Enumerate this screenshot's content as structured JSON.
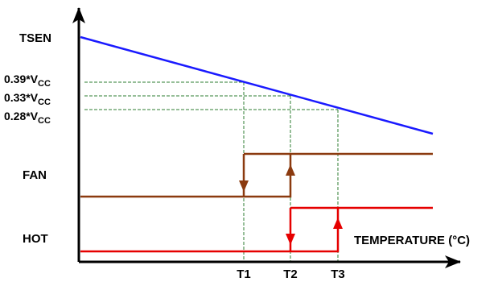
{
  "labels": {
    "tsen": "TSEN",
    "fan": "FAN",
    "hot": "HOT",
    "x_axis": "TEMPERATURE (°C)",
    "t1": "T1",
    "t2": "T2",
    "t3": "T3",
    "v39_prefix": "0.39*V",
    "v33_prefix": "0.33*V",
    "v28_prefix": "0.28*V",
    "vcc_sub": "CC"
  },
  "colors": {
    "tsen_line": "#1a1aff",
    "fan_line": "#8b3a0f",
    "hot_line": "#e60000",
    "guides": "#2e7d32",
    "axes": "#000000"
  }
}
